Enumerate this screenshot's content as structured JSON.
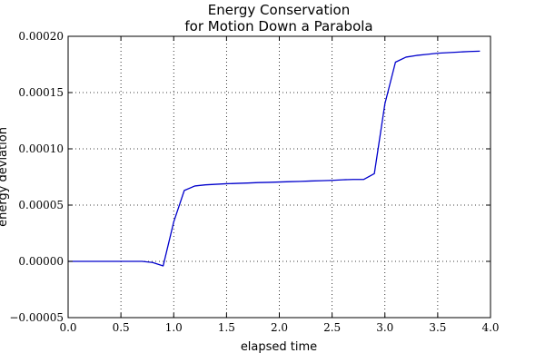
{
  "chart_data": {
    "type": "line",
    "title": [
      "Energy Conservation",
      "for Motion Down a Parabola"
    ],
    "xlabel": "elapsed time",
    "ylabel": "energy deviation",
    "xlim": [
      0.0,
      4.0
    ],
    "ylim": [
      -5e-05,
      0.0002
    ],
    "xticks": [
      "0.0",
      "0.5",
      "1.0",
      "1.5",
      "2.0",
      "2.5",
      "3.0",
      "3.5",
      "4.0"
    ],
    "yticks": [
      "−0.00005",
      "0.00000",
      "0.00005",
      "0.00010",
      "0.00015",
      "0.00020"
    ],
    "grid": true,
    "series": [
      {
        "color": "#0000cc",
        "x": [
          0.0,
          0.1,
          0.2,
          0.3,
          0.4,
          0.5,
          0.6,
          0.7,
          0.8,
          0.9,
          1.0,
          1.1,
          1.2,
          1.3,
          1.4,
          1.5,
          1.6,
          1.7,
          1.8,
          1.9,
          2.0,
          2.1,
          2.2,
          2.3,
          2.4,
          2.5,
          2.6,
          2.7,
          2.8,
          2.9,
          3.0,
          3.1,
          3.2,
          3.3,
          3.4,
          3.5,
          3.6,
          3.7,
          3.8,
          3.9
        ],
        "y": [
          0.0,
          0.0,
          0.0,
          0.0,
          0.0,
          0.0,
          0.0,
          0.0,
          -1e-06,
          -4e-06,
          3.5e-05,
          6.3e-05,
          6.7e-05,
          6.8e-05,
          6.85e-05,
          6.9e-05,
          6.93e-05,
          6.96e-05,
          7e-05,
          7.02e-05,
          7.05e-05,
          7.08e-05,
          7.11e-05,
          7.14e-05,
          7.17e-05,
          7.2e-05,
          7.25e-05,
          7.28e-05,
          7.28e-05,
          7.8e-05,
          0.00014,
          0.000177,
          0.0001815,
          0.000183,
          0.000184,
          0.000185,
          0.0001855,
          0.000186,
          0.0001865,
          0.0001868
        ]
      }
    ]
  }
}
